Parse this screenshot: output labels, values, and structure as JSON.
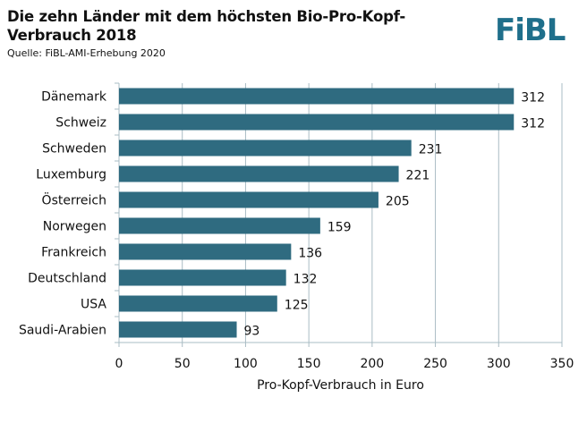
{
  "header": {
    "title": "Die zehn Länder mit dem höchsten Bio-Pro-Kopf-Verbrauch 2018",
    "source": "Quelle: FiBL-AMI-Erhebung 2020",
    "logo": "FiBL"
  },
  "colors": {
    "bar": "#2f6b80",
    "grid": "#a9bcc4",
    "logo": "#1f6f8b"
  },
  "chart_data": {
    "type": "bar",
    "orientation": "horizontal",
    "title": "Die zehn Länder mit dem höchsten Bio-Pro-Kopf-Verbrauch 2018",
    "categories": [
      "Dänemark",
      "Schweiz",
      "Schweden",
      "Luxemburg",
      "Österreich",
      "Norwegen",
      "Frankreich",
      "Deutschland",
      "USA",
      "Saudi-Arabien"
    ],
    "values": [
      312,
      312,
      231,
      221,
      205,
      159,
      136,
      132,
      125,
      93
    ],
    "xlabel": "Pro-Kopf-Verbrauch in Euro",
    "ylabel": "",
    "xlim": [
      0,
      350
    ],
    "xticks": [
      0,
      50,
      100,
      150,
      200,
      250,
      300,
      350
    ],
    "grid": true,
    "legend": "none"
  }
}
